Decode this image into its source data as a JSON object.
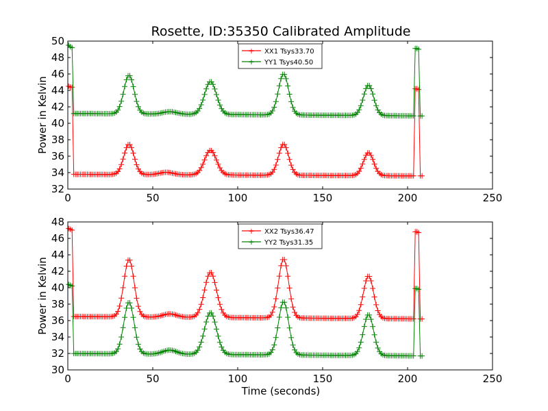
{
  "colors": {
    "xx": "#ff0000",
    "yy": "#008000"
  },
  "chart_data": [
    {
      "type": "line",
      "title": "Rosette, ID:35350 Calibrated Amplitude",
      "xlabel": "",
      "ylabel": "Power in Kelvin",
      "xlim": [
        0,
        250
      ],
      "ylim": [
        32,
        50
      ],
      "xticks": [
        "0",
        "50",
        "100",
        "150",
        "200",
        "250"
      ],
      "yticks": [
        "32",
        "34",
        "36",
        "38",
        "40",
        "42",
        "44",
        "46",
        "48",
        "50"
      ],
      "legend_position": "top-center",
      "grid": false,
      "series": [
        {
          "name": "XX1 Tsys33.70",
          "color": "#ff0000",
          "marker": "+",
          "baseline": 33.8,
          "baseline_end": 33.6,
          "peaks": [
            [
              36,
              3.7,
              3
            ],
            [
              58,
              0.3,
              4
            ],
            [
              84,
              3.0,
              3.5
            ],
            [
              127,
              3.8,
              3
            ],
            [
              177,
              2.8,
              3
            ]
          ],
          "spikes": [
            [
              0.5,
              44.5
            ],
            [
              1.5,
              44.4
            ],
            [
              2.5,
              44.4
            ],
            [
              205,
              44.2
            ],
            [
              206,
              44.1
            ]
          ],
          "x_end": 209
        },
        {
          "name": "YY1 Tsys40.50",
          "color": "#008000",
          "marker": "+",
          "baseline": 41.2,
          "baseline_end": 40.9,
          "peaks": [
            [
              36,
              4.7,
              3
            ],
            [
              60,
              0.3,
              4
            ],
            [
              84,
              4.0,
              3.5
            ],
            [
              127,
              5.0,
              3
            ],
            [
              177,
              3.7,
              3
            ]
          ],
          "spikes": [
            [
              0.5,
              49.5
            ],
            [
              1.5,
              49.3
            ],
            [
              2.5,
              49.2
            ],
            [
              205,
              49.1
            ],
            [
              206,
              49.0
            ]
          ],
          "x_end": 209
        }
      ]
    },
    {
      "type": "line",
      "title": "",
      "xlabel": "Time (seconds)",
      "ylabel": "Power in Kelvin",
      "xlim": [
        0,
        250
      ],
      "ylim": [
        30,
        48
      ],
      "xticks": [
        "0",
        "50",
        "100",
        "150",
        "200",
        "250"
      ],
      "yticks": [
        "30",
        "32",
        "34",
        "36",
        "38",
        "40",
        "42",
        "44",
        "46",
        "48"
      ],
      "legend_position": "top-center",
      "grid": false,
      "series": [
        {
          "name": "XX2 Tsys36.47",
          "color": "#ff0000",
          "marker": "+",
          "baseline": 36.5,
          "baseline_end": 36.2,
          "peaks": [
            [
              36,
              7.0,
              3
            ],
            [
              60,
              0.4,
              4
            ],
            [
              84,
              5.5,
              3.5
            ],
            [
              127,
              7.2,
              3
            ],
            [
              177,
              5.2,
              3
            ]
          ],
          "spikes": [
            [
              0.5,
              47.2
            ],
            [
              1.5,
              47.1
            ],
            [
              2.5,
              47.0
            ],
            [
              205,
              46.8
            ],
            [
              206,
              46.7
            ]
          ],
          "x_end": 209
        },
        {
          "name": "YY2 Tsys31.35",
          "color": "#008000",
          "marker": "+",
          "baseline": 32.0,
          "baseline_end": 31.7,
          "peaks": [
            [
              36,
              6.3,
              3
            ],
            [
              60,
              0.5,
              4
            ],
            [
              84,
              5.1,
              3.5
            ],
            [
              127,
              6.5,
              3
            ],
            [
              177,
              5.0,
              3
            ]
          ],
          "spikes": [
            [
              0.5,
              40.4
            ],
            [
              1.5,
              40.3
            ],
            [
              2.5,
              40.2
            ],
            [
              205,
              39.9
            ],
            [
              206,
              39.8
            ]
          ],
          "x_end": 209
        }
      ]
    }
  ]
}
